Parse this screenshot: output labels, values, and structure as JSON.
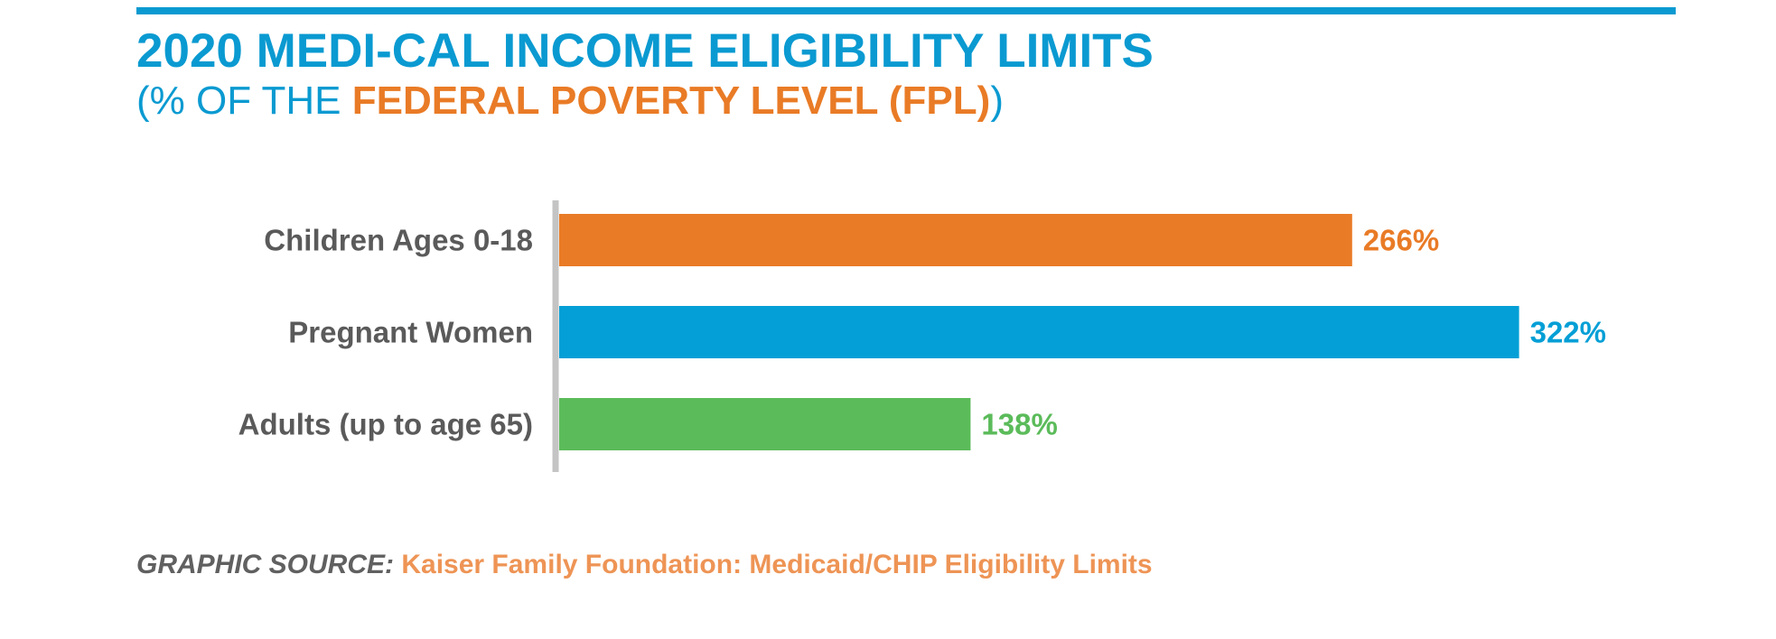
{
  "header": {
    "title": "2020 MEDI-CAL INCOME ELIGIBILITY LIMITS",
    "subtitle_open": "(% OF THE ",
    "subtitle_accent": "FEDERAL POVERTY LEVEL (FPL)",
    "subtitle_close": ")"
  },
  "chart_data": {
    "type": "bar",
    "orientation": "horizontal",
    "categories": [
      "Children Ages 0-18",
      "Pregnant Women",
      "Adults (up to age 65)"
    ],
    "values": [
      266,
      322,
      138
    ],
    "value_labels": [
      "266%",
      "322%",
      "138%"
    ],
    "bar_colors": [
      "#e97b26",
      "#049fd6",
      "#5bbb5a"
    ],
    "unit": "%",
    "grid": false,
    "legend": "none"
  },
  "footer": {
    "source_label": "GRAPHIC SOURCE:",
    "source_text": "Kaiser Family Foundation: Medicaid/CHIP Eligibility Limits"
  },
  "colors": {
    "title": "#0a9ad1",
    "accent": "#e97b26",
    "category_label": "#5a5a5a",
    "axis": "#c4c4c4",
    "source_label": "#606060",
    "source_text": "#ee9455"
  }
}
